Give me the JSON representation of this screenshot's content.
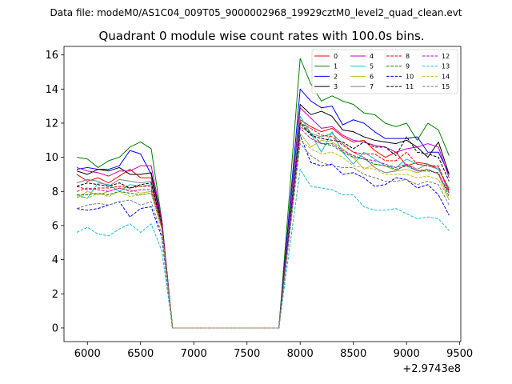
{
  "suptitle": "Data file: modeM0/AS1C04_009T05_9000002968_19929cztM0_level2_quad_clean.evt",
  "chart_data": {
    "type": "line",
    "title": "Quadrant 0 module wise count rates with 100.0s bins.",
    "xlabel": "",
    "ylabel": "",
    "x_offset_label": "+2.9743e8",
    "xlim": [
      5780,
      9510
    ],
    "ylim": [
      -0.8,
      16.5
    ],
    "xticks": [
      6000,
      6500,
      7000,
      7500,
      8000,
      8500,
      9000,
      9500
    ],
    "xtick_labels": [
      "6000",
      "6500",
      "7000",
      "7500",
      "8000",
      "8500",
      "9000",
      "9500"
    ],
    "yticks": [
      0,
      2,
      4,
      6,
      8,
      10,
      12,
      14,
      16
    ],
    "ytick_labels": [
      "0",
      "2",
      "4",
      "6",
      "8",
      "10",
      "12",
      "14",
      "16"
    ],
    "x": [
      5900,
      6000,
      6100,
      6200,
      6300,
      6400,
      6500,
      6600,
      6700,
      6800,
      6900,
      7000,
      7100,
      7200,
      7300,
      7400,
      7500,
      7600,
      7700,
      7800,
      8000,
      8100,
      8200,
      8300,
      8400,
      8500,
      8600,
      8700,
      8800,
      8900,
      9000,
      9100,
      9200,
      9300,
      9400
    ],
    "legend_columns": 4,
    "legend_position": "upper right",
    "series": [
      {
        "name": "0",
        "color": "#ff0000",
        "dash": "solid",
        "values": [
          9.0,
          8.6,
          8.8,
          8.5,
          8.9,
          9.3,
          8.8,
          8.8,
          6.0,
          0,
          0,
          0,
          0,
          0,
          0,
          0,
          0,
          0,
          0,
          0,
          12.2,
          11.8,
          11.5,
          11.7,
          11.2,
          10.9,
          11.0,
          10.4,
          10.0,
          10.3,
          9.5,
          9.7,
          9.6,
          9.3,
          8.1
        ]
      },
      {
        "name": "1",
        "color": "#008000",
        "dash": "solid",
        "values": [
          10.0,
          9.9,
          9.4,
          9.8,
          10.0,
          10.6,
          10.9,
          10.5,
          6.3,
          0,
          0,
          0,
          0,
          0,
          0,
          0,
          0,
          0,
          0,
          0,
          15.8,
          14.3,
          13.3,
          13.6,
          13.3,
          13.1,
          12.6,
          12.5,
          12.0,
          11.8,
          12.0,
          11.0,
          12.0,
          11.6,
          10.1
        ]
      },
      {
        "name": "2",
        "color": "#0000ff",
        "dash": "solid",
        "values": [
          9.3,
          9.4,
          9.3,
          9.3,
          9.5,
          10.4,
          10.2,
          9.0,
          6.2,
          0,
          0,
          0,
          0,
          0,
          0,
          0,
          0,
          0,
          0,
          0,
          14.0,
          13.3,
          12.9,
          13.0,
          11.9,
          12.2,
          12.0,
          11.5,
          11.1,
          11.1,
          11.1,
          11.2,
          10.3,
          10.3,
          9.0
        ]
      },
      {
        "name": "3",
        "color": "#000000",
        "dash": "solid",
        "values": [
          9.2,
          9.0,
          9.3,
          9.2,
          9.4,
          9.0,
          9.0,
          9.1,
          6.2,
          0,
          0,
          0,
          0,
          0,
          0,
          0,
          0,
          0,
          0,
          0,
          13.1,
          12.5,
          12.7,
          12.4,
          11.6,
          11.5,
          11.2,
          11.0,
          10.9,
          10.8,
          11.0,
          10.6,
          10.0,
          10.9,
          9.0
        ]
      },
      {
        "name": "4",
        "color": "#bf00bf",
        "dash": "solid",
        "values": [
          9.4,
          9.2,
          9.1,
          8.9,
          9.2,
          9.2,
          9.5,
          9.5,
          6.3,
          0,
          0,
          0,
          0,
          0,
          0,
          0,
          0,
          0,
          0,
          0,
          12.9,
          12.3,
          11.7,
          11.8,
          11.3,
          11.0,
          10.9,
          10.7,
          10.6,
          10.3,
          10.5,
          10.6,
          10.8,
          10.6,
          8.8
        ]
      },
      {
        "name": "5",
        "color": "#17becf",
        "dash": "solid",
        "values": [
          7.8,
          7.6,
          8.5,
          8.4,
          8.0,
          8.4,
          8.3,
          8.4,
          6.0,
          0,
          0,
          0,
          0,
          0,
          0,
          0,
          0,
          0,
          0,
          0,
          12.4,
          11.4,
          10.3,
          11.5,
          10.3,
          9.6,
          10.3,
          9.9,
          9.5,
          9.4,
          9.9,
          9.6,
          9.5,
          9.3,
          8.2
        ]
      },
      {
        "name": "6",
        "color": "#bcbd22",
        "dash": "solid",
        "values": [
          7.6,
          8.0,
          7.8,
          8.0,
          8.2,
          8.1,
          7.9,
          8.0,
          5.9,
          0,
          0,
          0,
          0,
          0,
          0,
          0,
          0,
          0,
          0,
          0,
          11.4,
          10.6,
          11.0,
          10.9,
          10.5,
          10.0,
          9.3,
          9.6,
          9.5,
          9.2,
          9.3,
          9.1,
          9.3,
          9.0,
          7.5
        ]
      },
      {
        "name": "7",
        "color": "#7f7f7f",
        "dash": "solid",
        "values": [
          8.5,
          8.7,
          8.6,
          8.3,
          8.7,
          8.6,
          8.5,
          8.6,
          6.1,
          0,
          0,
          0,
          0,
          0,
          0,
          0,
          0,
          0,
          0,
          0,
          11.8,
          11.4,
          11.2,
          11.4,
          10.8,
          10.3,
          10.0,
          9.4,
          9.1,
          9.2,
          9.6,
          9.3,
          9.6,
          9.4,
          7.9
        ]
      },
      {
        "name": "8",
        "color": "#ff0000",
        "dash": "dashed",
        "values": [
          8.3,
          8.1,
          8.2,
          8.2,
          8.3,
          8.2,
          8.3,
          8.3,
          6.0,
          0,
          0,
          0,
          0,
          0,
          0,
          0,
          0,
          0,
          0,
          0,
          12.0,
          11.7,
          11.3,
          11.2,
          10.7,
          10.3,
          10.2,
          10.2,
          9.8,
          9.8,
          10.3,
          9.6,
          9.5,
          9.5,
          8.0
        ]
      },
      {
        "name": "9",
        "color": "#008000",
        "dash": "dashed",
        "values": [
          7.8,
          7.8,
          7.9,
          7.8,
          8.0,
          7.9,
          7.8,
          7.9,
          5.8,
          0,
          0,
          0,
          0,
          0,
          0,
          0,
          0,
          0,
          0,
          0,
          12.1,
          11.4,
          10.8,
          10.7,
          10.3,
          10.0,
          9.9,
          9.6,
          9.5,
          9.3,
          9.5,
          9.2,
          9.2,
          9.1,
          7.7
        ]
      },
      {
        "name": "10",
        "color": "#0000ff",
        "dash": "dashed",
        "values": [
          7.0,
          6.9,
          7.0,
          7.2,
          7.4,
          6.5,
          7.0,
          7.1,
          5.3,
          0,
          0,
          0,
          0,
          0,
          0,
          0,
          0,
          0,
          0,
          0,
          11.3,
          9.7,
          9.5,
          9.6,
          9.0,
          9.1,
          8.8,
          8.3,
          8.4,
          8.8,
          8.7,
          8.2,
          8.4,
          7.8,
          6.6
        ]
      },
      {
        "name": "11",
        "color": "#000000",
        "dash": "dashed",
        "values": [
          8.3,
          8.5,
          8.4,
          8.3,
          8.5,
          8.2,
          8.4,
          8.5,
          6.1,
          0,
          0,
          0,
          0,
          0,
          0,
          0,
          0,
          0,
          0,
          0,
          12.0,
          11.3,
          11.1,
          11.0,
          10.9,
          10.5,
          10.9,
          10.6,
          10.6,
          10.1,
          11.2,
          10.3,
          10.2,
          10.0,
          8.6
        ]
      },
      {
        "name": "12",
        "color": "#bf00bf",
        "dash": "dashed",
        "values": [
          8.0,
          8.2,
          8.1,
          8.0,
          8.2,
          8.0,
          8.1,
          8.1,
          5.9,
          0,
          0,
          0,
          0,
          0,
          0,
          0,
          0,
          0,
          0,
          0,
          11.7,
          11.1,
          10.8,
          10.8,
          10.4,
          10.1,
          9.9,
          9.8,
          9.6,
          9.4,
          9.6,
          9.2,
          9.3,
          9.0,
          7.9
        ]
      },
      {
        "name": "13",
        "color": "#17becf",
        "dash": "dashed",
        "values": [
          5.6,
          5.9,
          5.5,
          5.4,
          5.8,
          6.1,
          5.6,
          6.1,
          4.5,
          0,
          0,
          0,
          0,
          0,
          0,
          0,
          0,
          0,
          0,
          0,
          9.3,
          8.3,
          8.2,
          8.1,
          7.8,
          7.8,
          7.1,
          6.9,
          6.9,
          7.0,
          6.7,
          6.4,
          6.5,
          6.4,
          5.7
        ]
      },
      {
        "name": "14",
        "color": "#bcbd22",
        "dash": "dashed",
        "values": [
          7.7,
          7.6,
          7.9,
          7.7,
          8.0,
          7.7,
          7.8,
          7.9,
          5.8,
          0,
          0,
          0,
          0,
          0,
          0,
          0,
          0,
          0,
          0,
          0,
          11.0,
          10.5,
          10.2,
          10.3,
          10.0,
          9.5,
          9.4,
          9.3,
          9.0,
          9.0,
          9.0,
          8.8,
          8.9,
          8.7,
          7.5
        ]
      },
      {
        "name": "15",
        "color": "#7f7f7f",
        "dash": "dashed",
        "values": [
          7.0,
          7.2,
          7.3,
          7.2,
          7.4,
          7.5,
          7.2,
          7.4,
          5.5,
          0,
          0,
          0,
          0,
          0,
          0,
          0,
          0,
          0,
          0,
          0,
          10.8,
          10.1,
          9.7,
          9.5,
          9.4,
          9.4,
          9.0,
          8.8,
          8.6,
          8.6,
          8.7,
          8.4,
          8.6,
          8.4,
          7.2
        ]
      }
    ]
  }
}
